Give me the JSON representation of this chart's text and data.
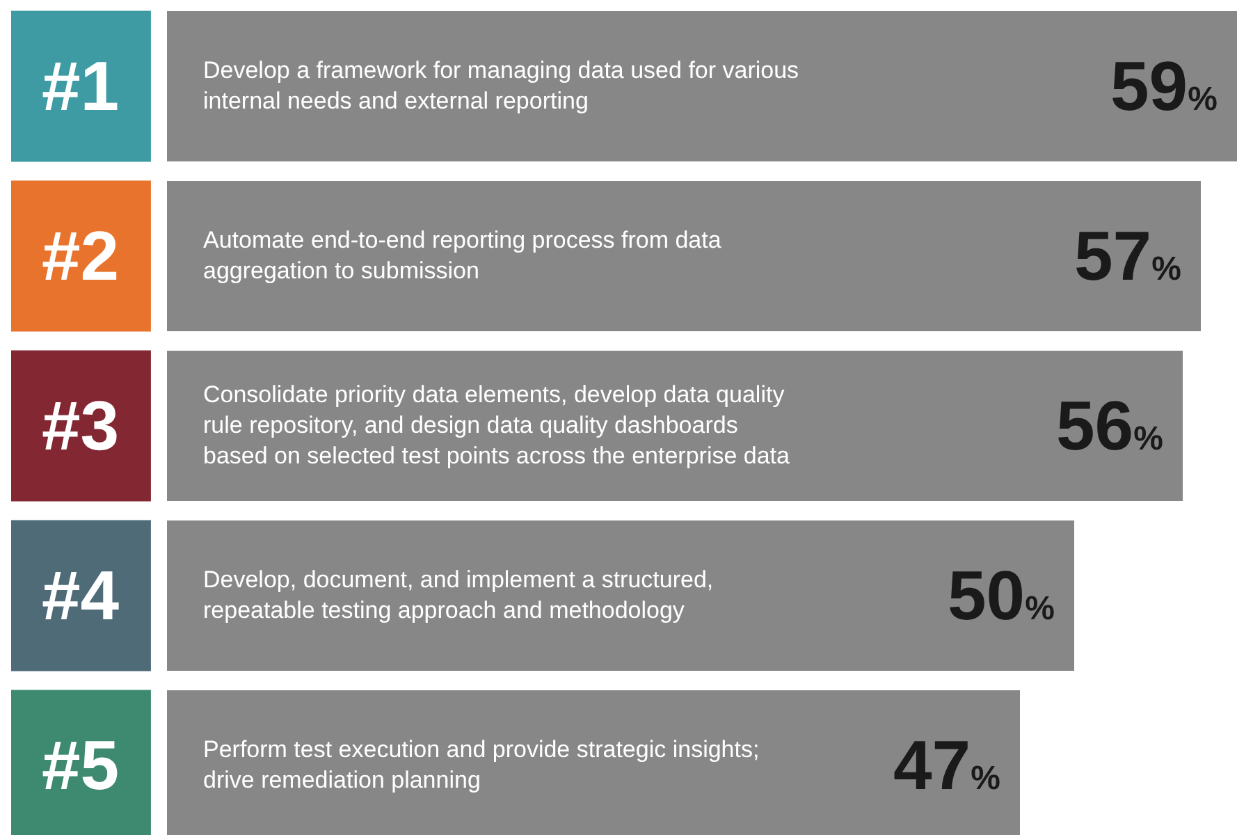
{
  "chart_data": {
    "type": "bar",
    "orientation": "horizontal",
    "categories": [
      "Develop a framework for managing data used for various internal needs and external reporting",
      "Automate end-to-end reporting process from data aggregation to submission",
      "Consolidate priority data elements, develop data quality rule repository, and design data quality dashboards based on selected test points across the enterprise data",
      "Develop, document, and implement a structured, repeatable testing approach and methodology",
      "Perform test execution and provide strategic insights; drive remediation planning"
    ],
    "values": [
      59,
      57,
      56,
      50,
      47
    ],
    "value_labels": [
      "59%",
      "57%",
      "56%",
      "50%",
      "47%"
    ],
    "color": "#878787",
    "xlim": [
      0,
      59
    ],
    "tick_labels": false,
    "legend": false,
    "annotations": [
      "#1",
      "#2",
      "#3",
      "#4",
      "#5"
    ]
  }
}
